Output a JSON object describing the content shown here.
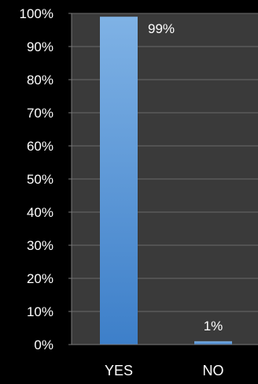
{
  "chart_data": {
    "type": "bar",
    "categories": [
      "YES",
      "NO"
    ],
    "values": [
      99,
      1
    ],
    "data_labels": [
      "99%",
      "1%"
    ],
    "y_tick_labels": [
      "0%",
      "10%",
      "20%",
      "30%",
      "40%",
      "50%",
      "60%",
      "70%",
      "80%",
      "90%",
      "100%"
    ],
    "ylim": [
      0,
      100
    ],
    "y_unit": "%",
    "grid": true,
    "legend": "none",
    "title": "",
    "xlabel": "",
    "ylabel": ""
  },
  "colors": {
    "background": "#000000",
    "plot_background": "#3a3a3a",
    "gridline": "#6b6b6b",
    "axis_line": "#7a7a7a",
    "bar_top": "#7fb2e5",
    "bar_bottom": "#3d7fc9",
    "text": "#ffffff"
  }
}
